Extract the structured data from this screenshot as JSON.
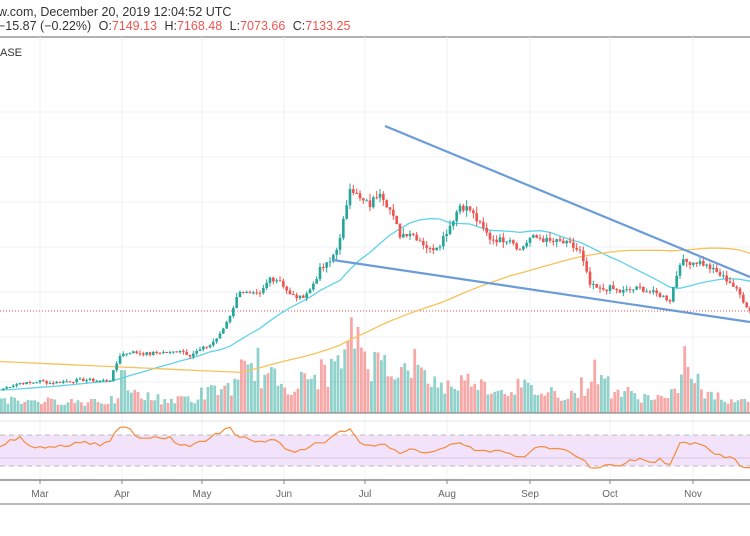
{
  "header": {
    "source_date": "w.com, December 20, 2019 12:04:52 UTC",
    "change": "−15.87 (−0.22%)",
    "open_label": "O:",
    "open": "7149.13",
    "high_label": "H:",
    "high": "7168.48",
    "low_label": "L:",
    "low": "7073.66",
    "close_label": "C:",
    "close": "7133.25",
    "symbol_fragment": "ASE"
  },
  "colors": {
    "up": "#26a69a",
    "down": "#ef5350",
    "ma_fast": "#5fd3e8",
    "ma_slow": "#f7c25a",
    "rsi": "#f68b3a",
    "trendline": "#6b9bd8",
    "rsi_band": "#f2e3fb"
  },
  "chart_data": {
    "type": "candlestick",
    "title": "",
    "x_tick_labels": [
      "Mar",
      "Apr",
      "May",
      "Jun",
      "Jul",
      "Aug",
      "Sep",
      "Oct",
      "Nov"
    ],
    "last_price": 7133.25,
    "closes": [
      3641,
      3818,
      3951,
      3951,
      4039,
      3951,
      3995,
      4039,
      4083,
      4083,
      4039,
      4083,
      5188,
      5321,
      5277,
      5233,
      5321,
      5277,
      5409,
      5188,
      5409,
      5630,
      6072,
      6956,
      8061,
      7840,
      7840,
      8592,
      8503,
      7840,
      7708,
      8061,
      8945,
      9299,
      10271,
      12702,
      12039,
      11818,
      12481,
      11597,
      10492,
      10625,
      10271,
      9829,
      10139,
      10934,
      11818,
      11597,
      10934,
      10360,
      10271,
      10360,
      9829,
      10360,
      10360,
      10183,
      10183,
      10050,
      9741,
      8282,
      8061,
      8150,
      7973,
      8061,
      8150,
      7973,
      7840,
      7619,
      9299,
      9299,
      9299,
      9034,
      8724,
      8415,
      7840,
      7133
    ],
    "volume": [
      14,
      18,
      12,
      15,
      13,
      12,
      14,
      13,
      12,
      15,
      13,
      14,
      35,
      20,
      18,
      16,
      15,
      14,
      17,
      15,
      22,
      25,
      28,
      30,
      45,
      55,
      40,
      38,
      32,
      30,
      35,
      40,
      45,
      50,
      60,
      90,
      70,
      55,
      60,
      50,
      45,
      55,
      40,
      35,
      30,
      32,
      35,
      40,
      30,
      28,
      25,
      30,
      28,
      25,
      22,
      24,
      20,
      22,
      30,
      45,
      35,
      25,
      22,
      20,
      18,
      18,
      16,
      20,
      60,
      35,
      22,
      18,
      16,
      15,
      14,
      38
    ],
    "rsi": [
      55,
      64,
      68,
      56,
      55,
      55,
      57,
      56,
      60,
      58,
      56,
      62,
      80,
      78,
      66,
      66,
      66,
      68,
      57,
      55,
      62,
      66,
      72,
      80,
      67,
      64,
      62,
      64,
      60,
      50,
      51,
      55,
      60,
      66,
      75,
      78,
      60,
      57,
      58,
      53,
      46,
      52,
      48,
      48,
      52,
      58,
      60,
      55,
      50,
      48,
      50,
      46,
      42,
      48,
      55,
      52,
      52,
      48,
      40,
      28,
      28,
      32,
      30,
      38,
      40,
      35,
      40,
      32,
      60,
      58,
      58,
      50,
      45,
      42,
      30,
      28
    ],
    "rsi_levels": [
      70,
      50,
      30
    ],
    "moving_averages": [
      {
        "name": "MA fast"
      },
      {
        "name": "MA slow"
      }
    ],
    "trendlines": [
      "upper descending",
      "lower descending"
    ],
    "grid": true
  }
}
